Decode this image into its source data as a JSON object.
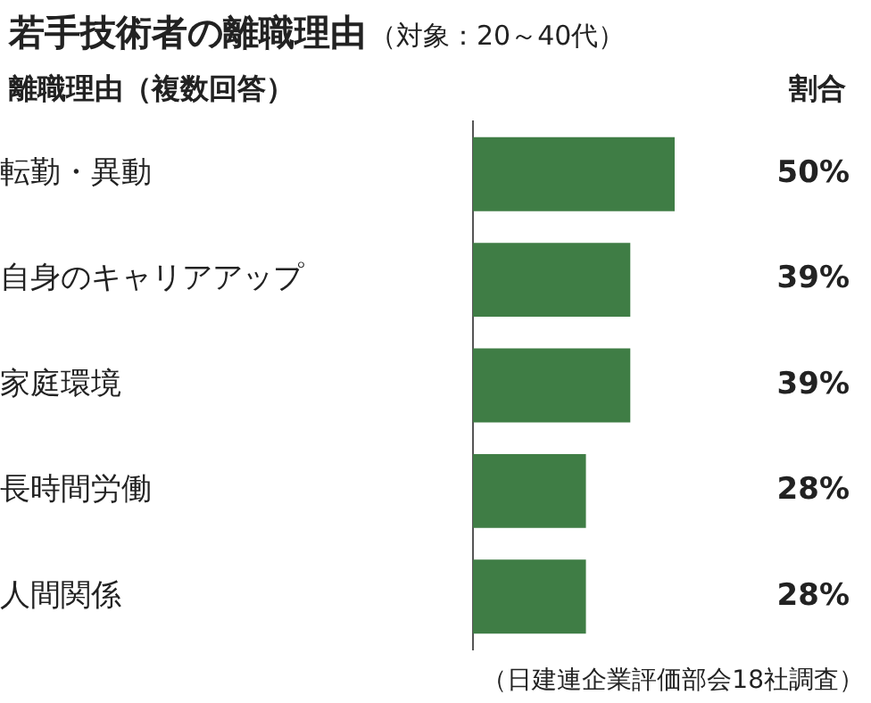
{
  "chart_data": {
    "type": "bar",
    "orientation": "horizontal",
    "title": "若手技術者の離職理由",
    "subtitle": "（対象：20～40代）",
    "categories": [
      "転勤・異動",
      "自身のキャリアアップ",
      "家庭環境",
      "長時間労働",
      "人間関係"
    ],
    "values": [
      50,
      39,
      39,
      28,
      28
    ],
    "value_labels": [
      "50%",
      "39%",
      "39%",
      "28%",
      "28%"
    ],
    "color": "#3f7d45",
    "annotations": [
      "離職理由（複数回答）",
      "割合",
      "（日建連企業評価部会18社調査）"
    ]
  }
}
